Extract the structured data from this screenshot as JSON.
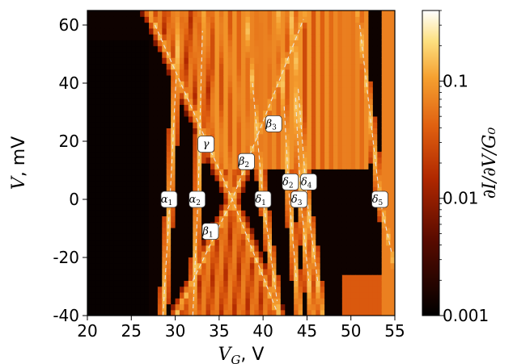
{
  "chart_data": {
    "type": "heatmap",
    "title": "",
    "xlabel": "V_G, V",
    "ylabel": "V, mV",
    "xlim": [
      20,
      55
    ],
    "ylim": [
      -40,
      65
    ],
    "x_ticks": [
      20,
      25,
      30,
      35,
      40,
      45,
      50,
      55
    ],
    "y_ticks": [
      -40,
      -20,
      0,
      20,
      40,
      60
    ],
    "colorbar": {
      "label": "∂I/∂V/G₀",
      "scale": "log",
      "range": [
        0.001,
        0.4
      ],
      "ticks": [
        0.001,
        0.01,
        0.1
      ],
      "tick_labels": [
        "0.001",
        "0.01",
        "0.1"
      ],
      "colormap": "afmhot"
    },
    "guide_lines": [
      {
        "name": "alpha1",
        "points": [
          [
            28.6,
            -40
          ],
          [
            29.4,
            0
          ],
          [
            30.1,
            42
          ]
        ]
      },
      {
        "name": "alpha2",
        "points": [
          [
            32.0,
            -40
          ],
          [
            32.6,
            0
          ],
          [
            33.1,
            58
          ]
        ]
      },
      {
        "name": "gamma_left",
        "points": [
          [
            27.7,
            60
          ],
          [
            36.5,
            0
          ],
          [
            41.5,
            -38
          ]
        ]
      },
      {
        "name": "gamma_right",
        "points": [
          [
            32.0,
            -28
          ],
          [
            36.5,
            0
          ],
          [
            44.6,
            62
          ]
        ]
      },
      {
        "name": "delta1",
        "points": [
          [
            38.8,
            40
          ],
          [
            40.0,
            0
          ],
          [
            41.6,
            -35
          ]
        ]
      },
      {
        "name": "delta2",
        "points": [
          [
            42.4,
            32
          ],
          [
            43.0,
            0
          ],
          [
            43.8,
            -28
          ]
        ]
      },
      {
        "name": "delta3",
        "points": [
          [
            43.7,
            35
          ],
          [
            44.3,
            0
          ],
          [
            45.2,
            -28
          ]
        ]
      },
      {
        "name": "delta4",
        "points": [
          [
            44.0,
            38
          ],
          [
            45.0,
            0
          ],
          [
            46.2,
            -28
          ]
        ]
      },
      {
        "name": "delta5",
        "points": [
          [
            51.0,
            60
          ],
          [
            53.3,
            0
          ],
          [
            54.6,
            -18
          ]
        ]
      }
    ],
    "annotations": [
      {
        "label": "α",
        "sub": "1",
        "x": 29.3,
        "y": 0
      },
      {
        "label": "α",
        "sub": "2",
        "x": 32.5,
        "y": 0
      },
      {
        "label": "γ",
        "sub": "",
        "x": 33.5,
        "y": 19
      },
      {
        "label": "β",
        "sub": "1",
        "x": 34.0,
        "y": -11
      },
      {
        "label": "β",
        "sub": "2",
        "x": 38.1,
        "y": 13
      },
      {
        "label": "β",
        "sub": "3",
        "x": 41.2,
        "y": 26
      },
      {
        "label": "δ",
        "sub": "1",
        "x": 40.0,
        "y": 0
      },
      {
        "label": "δ",
        "sub": "2",
        "x": 43.1,
        "y": 6
      },
      {
        "label": "δ",
        "sub": "3",
        "x": 44.1,
        "y": 0
      },
      {
        "label": "δ",
        "sub": "4",
        "x": 45.2,
        "y": 6
      },
      {
        "label": "δ",
        "sub": "5",
        "x": 53.3,
        "y": 0
      }
    ]
  }
}
